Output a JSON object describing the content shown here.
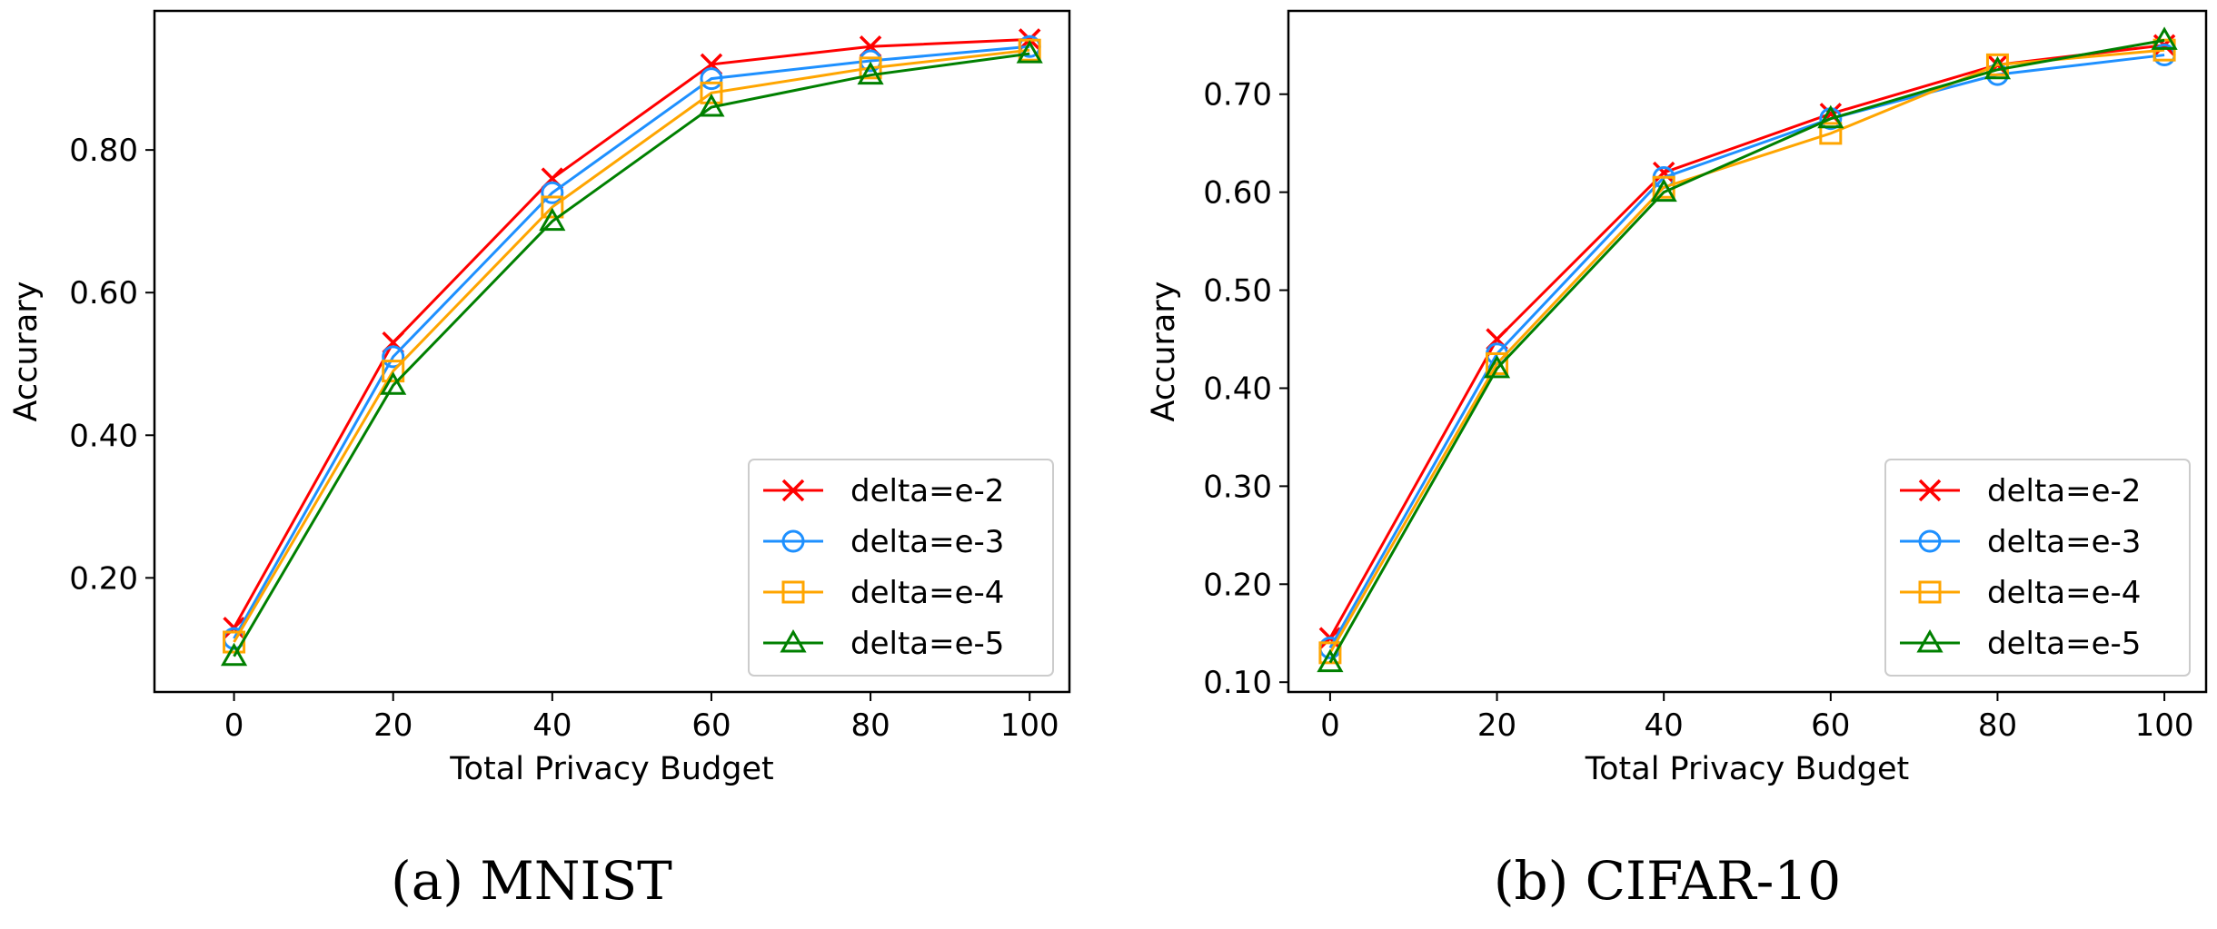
{
  "chart_data": [
    {
      "type": "line",
      "caption": "(a)  MNIST",
      "xlabel": "Total Privacy Budget",
      "ylabel": "Accurary",
      "x": [
        0,
        20,
        40,
        60,
        80,
        100
      ],
      "xlim": [
        -10,
        105
      ],
      "ylim": [
        0.04,
        0.995
      ],
      "xticks": [
        0,
        20,
        40,
        60,
        80,
        100
      ],
      "yticks": [
        0.2,
        0.4,
        0.6,
        0.8
      ],
      "xtick_labels": [
        "0",
        "20",
        "40",
        "60",
        "80",
        "100"
      ],
      "ytick_labels": [
        "0.20",
        "0.40",
        "0.60",
        "0.80"
      ],
      "legend": "lower-right",
      "grid": false,
      "series": [
        {
          "name": "delta=e-2",
          "color": "#ff0000",
          "marker": "x",
          "values": [
            0.13,
            0.53,
            0.76,
            0.92,
            0.945,
            0.955
          ]
        },
        {
          "name": "delta=e-3",
          "color": "#1e90ff",
          "marker": "circle",
          "values": [
            0.115,
            0.51,
            0.74,
            0.9,
            0.925,
            0.945
          ]
        },
        {
          "name": "delta=e-4",
          "color": "#ffa500",
          "marker": "square",
          "values": [
            0.11,
            0.49,
            0.72,
            0.88,
            0.915,
            0.94
          ]
        },
        {
          "name": "delta=e-5",
          "color": "#008000",
          "marker": "triangle",
          "values": [
            0.09,
            0.47,
            0.7,
            0.86,
            0.905,
            0.935
          ]
        }
      ]
    },
    {
      "type": "line",
      "caption": "(b)  CIFAR-10",
      "xlabel": "Total Privacy Budget",
      "ylabel": "Accurary",
      "x": [
        0,
        20,
        40,
        60,
        80,
        100
      ],
      "xlim": [
        -5,
        105
      ],
      "ylim": [
        0.09,
        0.785
      ],
      "xticks": [
        0,
        20,
        40,
        60,
        80,
        100
      ],
      "yticks": [
        0.1,
        0.2,
        0.3,
        0.4,
        0.5,
        0.6,
        0.7
      ],
      "xtick_labels": [
        "0",
        "20",
        "40",
        "60",
        "80",
        "100"
      ],
      "ytick_labels": [
        "0.10",
        "0.20",
        "0.30",
        "0.40",
        "0.50",
        "0.60",
        "0.70"
      ],
      "legend": "lower-right",
      "grid": false,
      "series": [
        {
          "name": "delta=e-2",
          "color": "#ff0000",
          "marker": "x",
          "values": [
            0.145,
            0.45,
            0.62,
            0.68,
            0.73,
            0.75
          ]
        },
        {
          "name": "delta=e-3",
          "color": "#1e90ff",
          "marker": "circle",
          "values": [
            0.135,
            0.435,
            0.615,
            0.675,
            0.72,
            0.74
          ]
        },
        {
          "name": "delta=e-4",
          "color": "#ffa500",
          "marker": "square",
          "values": [
            0.13,
            0.425,
            0.605,
            0.66,
            0.73,
            0.745
          ]
        },
        {
          "name": "delta=e-5",
          "color": "#008000",
          "marker": "triangle",
          "values": [
            0.12,
            0.42,
            0.6,
            0.675,
            0.725,
            0.755
          ]
        }
      ]
    }
  ]
}
